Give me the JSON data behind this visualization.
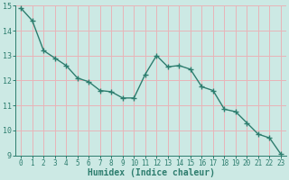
{
  "x": [
    0,
    1,
    2,
    3,
    4,
    5,
    6,
    7,
    8,
    9,
    10,
    11,
    12,
    13,
    14,
    15,
    16,
    17,
    18,
    19,
    20,
    21,
    22,
    23
  ],
  "y": [
    14.9,
    14.4,
    13.2,
    12.9,
    12.6,
    12.1,
    11.95,
    11.6,
    11.55,
    11.3,
    11.3,
    12.25,
    13.0,
    12.55,
    12.6,
    12.45,
    11.75,
    11.6,
    10.85,
    10.75,
    10.3,
    9.85,
    9.7,
    9.05
  ],
  "xlabel": "Humidex (Indice chaleur)",
  "ylabel": "",
  "ylim": [
    9,
    15
  ],
  "xlim": [
    -0.5,
    23.5
  ],
  "yticks": [
    9,
    10,
    11,
    12,
    13,
    14,
    15
  ],
  "xticks": [
    0,
    1,
    2,
    3,
    4,
    5,
    6,
    7,
    8,
    9,
    10,
    11,
    12,
    13,
    14,
    15,
    16,
    17,
    18,
    19,
    20,
    21,
    22,
    23
  ],
  "line_color": "#2d7d6e",
  "marker": "+",
  "bg_color": "#cce9e4",
  "grid_color": "#e8b4b8",
  "axis_color": "#2d7d6e",
  "tick_label_color": "#2d7d6e",
  "xlabel_color": "#2d7d6e",
  "line_width": 1.0,
  "marker_size": 4,
  "marker_edge_width": 1.0
}
